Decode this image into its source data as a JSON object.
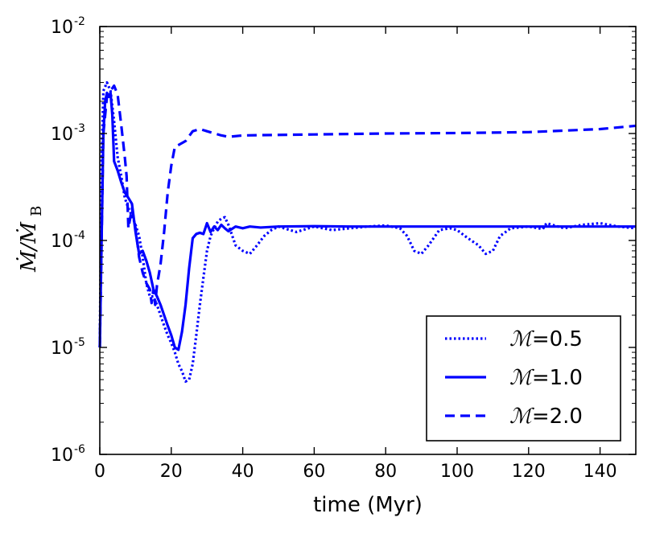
{
  "chart_data": {
    "type": "line",
    "title": "",
    "xlabel": "time (Myr)",
    "ylabel": "Ṁ/Ṁ_B",
    "ylabel_main": "Ṁ/Ṁ",
    "ylabel_sub": "B",
    "xlim": [
      0,
      150
    ],
    "ylim": [
      1e-06,
      0.01
    ],
    "yscale": "log",
    "grid": false,
    "legend_position": "lower-right",
    "x_ticks": [
      0,
      20,
      40,
      60,
      80,
      100,
      120,
      140
    ],
    "x_tick_labels": [
      "0",
      "20",
      "40",
      "60",
      "80",
      "100",
      "120",
      "140"
    ],
    "y_ticks": [
      {
        "value": 1e-06,
        "base": "10",
        "exp": "-6"
      },
      {
        "value": 1e-05,
        "base": "10",
        "exp": "-5"
      },
      {
        "value": 0.0001,
        "base": "10",
        "exp": "-4"
      },
      {
        "value": 0.001,
        "base": "10",
        "exp": "-3"
      },
      {
        "value": 0.01,
        "base": "10",
        "exp": "-2"
      }
    ],
    "series": [
      {
        "name": "ℳ=0.5",
        "mach_symbol": "ℳ",
        "mach_value": "=0.5",
        "style": "dotted",
        "color": "#0000ff",
        "x": [
          0,
          0.5,
          1,
          2,
          3,
          4,
          5,
          6,
          7,
          8,
          9,
          10,
          11,
          12,
          13,
          14,
          15,
          16,
          17,
          18,
          19,
          20,
          21,
          22,
          23,
          24,
          25,
          26,
          27,
          28,
          29,
          30,
          31,
          32,
          33,
          34,
          35,
          36,
          38,
          40,
          42,
          44,
          46,
          48,
          50,
          55,
          60,
          65,
          70,
          75,
          80,
          84,
          86,
          88,
          90,
          92,
          95,
          98,
          100,
          103,
          106,
          108,
          110,
          112,
          115,
          120,
          124,
          125,
          130,
          135,
          140,
          145,
          150
        ],
        "y": [
          1e-05,
          0.0005,
          0.0025,
          0.003,
          0.0025,
          0.0013,
          0.0006,
          0.0004,
          0.00025,
          0.0002,
          0.00017,
          0.00014,
          0.00011,
          7e-05,
          4e-05,
          3e-05,
          3e-05,
          2.5e-05,
          2e-05,
          1.6e-05,
          1.3e-05,
          1.1e-05,
          9e-06,
          7e-06,
          6e-06,
          4.8e-06,
          5e-06,
          7e-06,
          1.3e-05,
          2.5e-05,
          4.5e-05,
          8e-05,
          0.00011,
          0.00013,
          0.00015,
          0.00016,
          0.000165,
          0.00014,
          9e-05,
          8e-05,
          7.5e-05,
          9e-05,
          0.00011,
          0.000125,
          0.000135,
          0.00012,
          0.000135,
          0.000125,
          0.00013,
          0.000135,
          0.000138,
          0.00013,
          0.00011,
          8e-05,
          7.5e-05,
          9e-05,
          0.000125,
          0.00013,
          0.000125,
          0.000105,
          9e-05,
          7.5e-05,
          8e-05,
          0.00011,
          0.00013,
          0.000135,
          0.000128,
          0.000145,
          0.00013,
          0.00014,
          0.000145,
          0.000135,
          0.00013
        ]
      },
      {
        "name": "ℳ=1.0",
        "mach_symbol": "ℳ",
        "mach_value": "=1.0",
        "style": "solid",
        "color": "#0000ff",
        "x": [
          0,
          0.5,
          1,
          1.5,
          2,
          2.5,
          3,
          3.5,
          4,
          5,
          6,
          7,
          8,
          9,
          10,
          11,
          12,
          13,
          14,
          15,
          16,
          17,
          18,
          19,
          20,
          21,
          22,
          23,
          24,
          25,
          26,
          27,
          28,
          29,
          30,
          31,
          32,
          33,
          34,
          35,
          36,
          38,
          40,
          42,
          45,
          50,
          60,
          70,
          80,
          90,
          100,
          110,
          120,
          130,
          140,
          150
        ],
        "y": [
          1e-05,
          0.0001,
          0.001,
          0.002,
          0.0024,
          0.0022,
          0.0024,
          0.0015,
          0.00055,
          0.00045,
          0.00035,
          0.00028,
          0.00025,
          0.00022,
          0.00012,
          7.5e-05,
          8e-05,
          6.5e-05,
          5e-05,
          3.5e-05,
          3e-05,
          2.5e-05,
          2e-05,
          1.6e-05,
          1.3e-05,
          1e-05,
          9.5e-06,
          1.4e-05,
          2.5e-05,
          5.5e-05,
          0.000105,
          0.000115,
          0.000118,
          0.000115,
          0.000145,
          0.00012,
          0.000135,
          0.000125,
          0.00014,
          0.00013,
          0.000122,
          0.000135,
          0.00013,
          0.000135,
          0.000132,
          0.000135,
          0.000136,
          0.000135,
          0.000135,
          0.000135,
          0.000135,
          0.000135,
          0.000135,
          0.000135,
          0.000135,
          0.000135
        ]
      },
      {
        "name": "ℳ=2.0",
        "mach_symbol": "ℳ",
        "mach_value": "=2.0",
        "style": "dashed",
        "color": "#0000ff",
        "x": [
          0,
          0.5,
          1,
          2,
          3,
          4,
          5,
          6,
          7,
          7.5,
          8,
          9,
          10,
          11,
          12,
          13,
          14,
          14.5,
          15,
          15.5,
          16,
          17,
          18,
          19,
          20,
          21,
          22,
          24,
          26,
          28,
          30,
          34,
          36,
          40,
          50,
          60,
          80,
          100,
          120,
          140,
          150
        ],
        "y": [
          1e-05,
          0.0001,
          0.001,
          0.0022,
          0.0025,
          0.0028,
          0.0023,
          0.0012,
          0.0006,
          0.0004,
          0.00013,
          0.0002,
          0.00013,
          7e-05,
          5e-05,
          4e-05,
          3.5e-05,
          2.6e-05,
          3.5e-05,
          2.5e-05,
          3.8e-05,
          6e-05,
          0.00012,
          0.00028,
          0.0005,
          0.00075,
          0.00078,
          0.00085,
          0.00105,
          0.0011,
          0.00105,
          0.00096,
          0.00093,
          0.00096,
          0.00097,
          0.00098,
          0.001,
          0.00101,
          0.00103,
          0.0011,
          0.00118
        ]
      }
    ]
  }
}
